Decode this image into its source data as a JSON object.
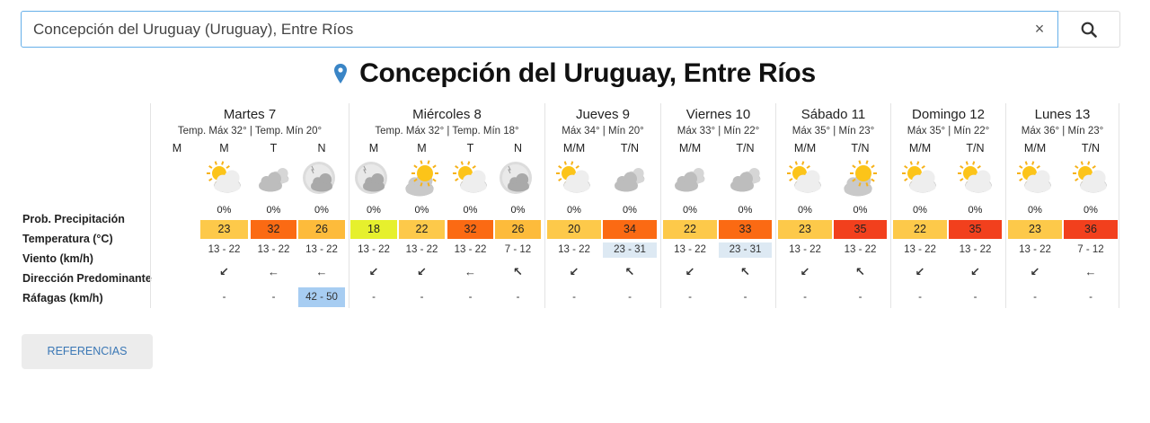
{
  "search": {
    "value": "Concepción del Uruguay (Uruguay), Entre Ríos",
    "clear_label": "×"
  },
  "page_title": "Concepción del Uruguay, Entre Ríos",
  "row_labels": {
    "precipitation": "Prob. Precipitación",
    "temperature": "Temperatura (°C)",
    "wind": "Viento (km/h)",
    "direction": "Dirección Predominante",
    "gusts": "Ráfagas (km/h)"
  },
  "colors": {
    "temp_18": "#e6f02d",
    "temp_20_23": "#fdc94a",
    "temp_26": "#fdbb3b",
    "temp_32_34": "#fb6a13",
    "temp_35_36": "#f2401d",
    "wind_highlight": "#dde9f3",
    "gust_highlight": "#a7cdf2",
    "accent": "#3a77b5"
  },
  "days": [
    {
      "name": "Martes 7",
      "temps": "Temp. Máx 32° | Temp. Mín 20°",
      "periods": [
        {
          "label": "M",
          "icon": "none",
          "precip": "",
          "temp": "",
          "wind": "",
          "dir": "",
          "gust": ""
        },
        {
          "label": "M",
          "icon": "partly-sunny-icon",
          "precip": "0%",
          "temp": "23",
          "wind": "13 - 22",
          "dir": "↙",
          "gust": "-"
        },
        {
          "label": "T",
          "icon": "cloudy-icon",
          "precip": "0%",
          "temp": "32",
          "wind": "13 - 22",
          "dir": "←",
          "gust": "-"
        },
        {
          "label": "N",
          "icon": "night-cloudy-icon",
          "precip": "0%",
          "temp": "26",
          "wind": "13 - 22",
          "dir": "←",
          "gust": "42 - 50"
        }
      ]
    },
    {
      "name": "Miércoles 8",
      "temps": "Temp. Máx 32° | Temp. Mín 18°",
      "periods": [
        {
          "label": "M",
          "icon": "night-cloudy-icon",
          "precip": "0%",
          "temp": "18",
          "wind": "13 - 22",
          "dir": "↙",
          "gust": "-"
        },
        {
          "label": "M",
          "icon": "sun-cloud-icon",
          "precip": "0%",
          "temp": "22",
          "wind": "13 - 22",
          "dir": "↙",
          "gust": "-"
        },
        {
          "label": "T",
          "icon": "partly-sunny-icon",
          "precip": "0%",
          "temp": "32",
          "wind": "13 - 22",
          "dir": "←",
          "gust": "-"
        },
        {
          "label": "N",
          "icon": "night-cloudy-icon",
          "precip": "0%",
          "temp": "26",
          "wind": "7 - 12",
          "dir": "↖",
          "gust": "-"
        }
      ]
    },
    {
      "name": "Jueves 9",
      "temps": "Máx 34° | Mín 20°",
      "periods": [
        {
          "label": "M/M",
          "icon": "partly-sunny-icon",
          "precip": "0%",
          "temp": "20",
          "wind": "13 - 22",
          "dir": "↙",
          "gust": "-"
        },
        {
          "label": "T/N",
          "icon": "cloudy-icon",
          "precip": "0%",
          "temp": "34",
          "wind": "23 - 31",
          "dir": "↖",
          "gust": "-"
        }
      ]
    },
    {
      "name": "Viernes 10",
      "temps": "Máx 33° | Mín 22°",
      "periods": [
        {
          "label": "M/M",
          "icon": "cloudy-icon",
          "precip": "0%",
          "temp": "22",
          "wind": "13 - 22",
          "dir": "↙",
          "gust": "-"
        },
        {
          "label": "T/N",
          "icon": "cloudy-icon",
          "precip": "0%",
          "temp": "33",
          "wind": "23 - 31",
          "dir": "↖",
          "gust": "-"
        }
      ]
    },
    {
      "name": "Sábado 11",
      "temps": "Máx 35° | Mín 23°",
      "periods": [
        {
          "label": "M/M",
          "icon": "partly-sunny-icon",
          "precip": "0%",
          "temp": "23",
          "wind": "13 - 22",
          "dir": "↙",
          "gust": "-"
        },
        {
          "label": "T/N",
          "icon": "sun-cloud-icon",
          "precip": "0%",
          "temp": "35",
          "wind": "13 - 22",
          "dir": "↖",
          "gust": "-"
        }
      ]
    },
    {
      "name": "Domingo 12",
      "temps": "Máx 35° | Mín 22°",
      "periods": [
        {
          "label": "M/M",
          "icon": "partly-sunny-icon",
          "precip": "0%",
          "temp": "22",
          "wind": "13 - 22",
          "dir": "↙",
          "gust": "-"
        },
        {
          "label": "T/N",
          "icon": "partly-sunny-icon",
          "precip": "0%",
          "temp": "35",
          "wind": "13 - 22",
          "dir": "↙",
          "gust": "-"
        }
      ]
    },
    {
      "name": "Lunes 13",
      "temps": "Máx 36° | Mín 23°",
      "periods": [
        {
          "label": "M/M",
          "icon": "partly-sunny-icon",
          "precip": "0%",
          "temp": "23",
          "wind": "13 - 22",
          "dir": "↙",
          "gust": "-"
        },
        {
          "label": "T/N",
          "icon": "partly-sunny-icon",
          "precip": "0%",
          "temp": "36",
          "wind": "7 - 12",
          "dir": "←",
          "gust": "-"
        }
      ]
    }
  ],
  "references_button": "REFERENCIAS"
}
